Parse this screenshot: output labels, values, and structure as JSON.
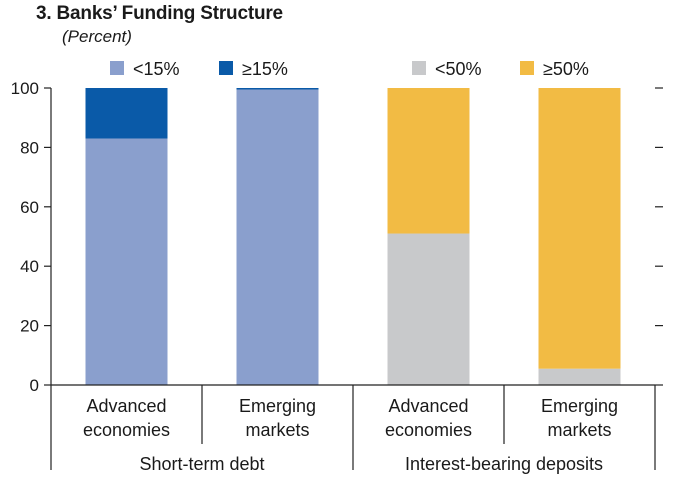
{
  "chart_data": {
    "type": "bar",
    "stacked": true,
    "title": "3. Banks’ Funding Structure",
    "subtitle": "(Percent)",
    "ylim": [
      0,
      100
    ],
    "yticks": [
      0,
      20,
      40,
      60,
      80,
      100
    ],
    "xlabel": "",
    "ylabel": "",
    "groups": [
      {
        "label": "Short-term debt",
        "categories": [
          "Advanced\neconomies",
          "Emerging\nmarkets"
        ],
        "series": [
          {
            "name": "<15%",
            "color": "#8a9fcd",
            "values": [
              83,
              99.5
            ]
          },
          {
            "name": "≥15%",
            "color": "#0a5aa8",
            "values": [
              17,
              0.5
            ]
          }
        ]
      },
      {
        "label": "Interest-bearing deposits",
        "categories": [
          "Advanced\neconomies",
          "Emerging\nmarkets"
        ],
        "series": [
          {
            "name": "<50%",
            "color": "#c8c9cb",
            "values": [
              51,
              5.5
            ]
          },
          {
            "name": "≥50%",
            "color": "#f2bb44",
            "values": [
              49,
              94.5
            ]
          }
        ]
      }
    ]
  }
}
